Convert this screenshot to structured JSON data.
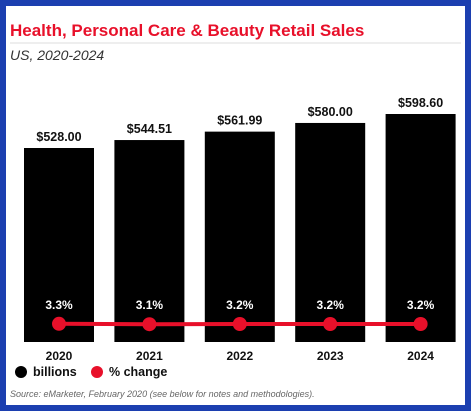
{
  "colors": {
    "border": "#1c3fb0",
    "title": "#e8102a",
    "bar": "#000000",
    "line": "#e8102a"
  },
  "chart_data": {
    "type": "bar",
    "title": "Health, Personal Care & Beauty Retail Sales",
    "subtitle": "US, 2020-2024",
    "categories": [
      "2020",
      "2021",
      "2022",
      "2023",
      "2024"
    ],
    "series": [
      {
        "name": "billions",
        "values": [
          528.0,
          544.51,
          561.99,
          580.0,
          598.6
        ],
        "labels": [
          "$528.00",
          "$544.51",
          "$561.99",
          "$580.00",
          "$598.60"
        ]
      },
      {
        "name": "% change",
        "values": [
          3.3,
          3.1,
          3.2,
          3.2,
          3.2
        ],
        "labels": [
          "3.3%",
          "3.1%",
          "3.2%",
          "3.2%",
          "3.2%"
        ]
      }
    ],
    "legend": [
      "billions",
      "% change"
    ],
    "legend_position": "bottom-left",
    "source": "Source: eMarketer, February 2020 (see below for notes and methodologies)."
  }
}
